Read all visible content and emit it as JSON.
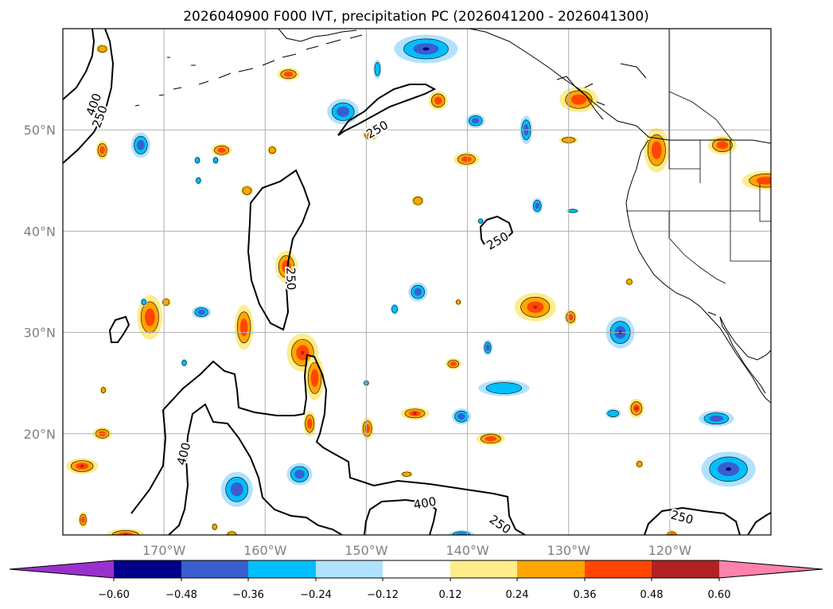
{
  "chart_data": {
    "type": "map",
    "title": "2026040900 F000 IVT, precipitation PC (2026041200 - 2026041300)",
    "lon_range": [
      -180,
      -110
    ],
    "lat_range": [
      10,
      60
    ],
    "x_ticks": [
      {
        "lon": -170,
        "label": "170°W"
      },
      {
        "lon": -160,
        "label": "160°W"
      },
      {
        "lon": -150,
        "label": "150°W"
      },
      {
        "lon": -140,
        "label": "140°W"
      },
      {
        "lon": -130,
        "label": "130°W"
      },
      {
        "lon": -120,
        "label": "120°W"
      }
    ],
    "y_ticks": [
      {
        "lat": 20,
        "label": "20°N"
      },
      {
        "lat": 30,
        "label": "30°N"
      },
      {
        "lat": 40,
        "label": "40°N"
      },
      {
        "lat": 50,
        "label": "50°N"
      }
    ],
    "colorbar": {
      "levels": [
        "−0.60",
        "−0.48",
        "−0.36",
        "−0.24",
        "−0.12",
        "0.12",
        "0.24",
        "0.36",
        "0.48",
        "0.60"
      ],
      "colors": [
        "#9932cc",
        "#00008b",
        "#3a5fcd",
        "#00bfff",
        "#b0e2ff",
        "#ffffff",
        "#ffec8b",
        "#ffa500",
        "#ff4500",
        "#b22222",
        "#ff82ab"
      ]
    },
    "ivt_contour_labels": [
      {
        "text": "400",
        "lon": -176.9,
        "lat": 52.5,
        "rot": -70
      },
      {
        "text": "250",
        "lon": -176.3,
        "lat": 51.3,
        "rot": -70
      },
      {
        "text": "250",
        "lon": -148.9,
        "lat": 50.0,
        "rot": -30
      },
      {
        "text": "250",
        "lon": -137.0,
        "lat": 39.0,
        "rot": -30
      },
      {
        "text": "250",
        "lon": -157.5,
        "lat": 35.3,
        "rot": 88
      },
      {
        "text": "400",
        "lon": -168.0,
        "lat": 18.0,
        "rot": -75
      },
      {
        "text": "400",
        "lon": -144.2,
        "lat": 13.1,
        "rot": -10
      },
      {
        "text": "250",
        "lon": -136.8,
        "lat": 11.0,
        "rot": 35
      },
      {
        "text": "250",
        "lon": -118.8,
        "lat": 11.7,
        "rot": 15
      }
    ],
    "precip_features": [
      {
        "lon": -144.1,
        "lat": 58.0,
        "sign": "neg",
        "level": 3,
        "rx": 40,
        "ry": 18
      },
      {
        "lon": -152.3,
        "lat": 51.8,
        "sign": "neg",
        "level": 2,
        "rx": 20,
        "ry": 16
      },
      {
        "lon": -157.7,
        "lat": 55.5,
        "sign": "pos",
        "level": 2,
        "rx": 14,
        "ry": 8
      },
      {
        "lon": -148.9,
        "lat": 56.0,
        "sign": "neg",
        "level": 1,
        "rx": 5,
        "ry": 12
      },
      {
        "lon": -142.9,
        "lat": 52.9,
        "sign": "pos",
        "level": 2,
        "rx": 12,
        "ry": 12
      },
      {
        "lon": -139.2,
        "lat": 50.9,
        "sign": "neg",
        "level": 2,
        "rx": 12,
        "ry": 9
      },
      {
        "lon": -134.2,
        "lat": 50.0,
        "sign": "neg",
        "level": 2,
        "rx": 8,
        "ry": 18
      },
      {
        "lon": -149.6,
        "lat": 49.5,
        "sign": "pos",
        "level": 2,
        "rx": 10,
        "ry": 7
      },
      {
        "lon": -176.1,
        "lat": 58.0,
        "sign": "pos",
        "level": 1,
        "rx": 8,
        "ry": 6
      },
      {
        "lon": -172.3,
        "lat": 48.5,
        "sign": "neg",
        "level": 2,
        "rx": 12,
        "ry": 16
      },
      {
        "lon": -176.1,
        "lat": 48.0,
        "sign": "pos",
        "level": 2,
        "rx": 8,
        "ry": 12
      },
      {
        "lon": -164.3,
        "lat": 48.0,
        "sign": "pos",
        "level": 2,
        "rx": 13,
        "ry": 8
      },
      {
        "lon": -159.3,
        "lat": 48.0,
        "sign": "pos",
        "level": 1,
        "rx": 6,
        "ry": 6
      },
      {
        "lon": -140.1,
        "lat": 47.1,
        "sign": "pos",
        "level": 2,
        "rx": 16,
        "ry": 9
      },
      {
        "lon": -130.0,
        "lat": 49.0,
        "sign": "pos",
        "level": 1,
        "rx": 12,
        "ry": 5
      },
      {
        "lon": -129.0,
        "lat": 53.0,
        "sign": "pos",
        "level": 2,
        "rx": 24,
        "ry": 16
      },
      {
        "lon": -121.3,
        "lat": 48.0,
        "sign": "pos",
        "level": 2,
        "rx": 16,
        "ry": 28
      },
      {
        "lon": -114.8,
        "lat": 48.5,
        "sign": "pos",
        "level": 2,
        "rx": 18,
        "ry": 12
      },
      {
        "lon": -110.5,
        "lat": 45.0,
        "sign": "pos",
        "level": 2,
        "rx": 30,
        "ry": 12
      },
      {
        "lon": -161.8,
        "lat": 44.0,
        "sign": "pos",
        "level": 1,
        "rx": 8,
        "ry": 7
      },
      {
        "lon": -144.9,
        "lat": 43.0,
        "sign": "pos",
        "level": 1,
        "rx": 8,
        "ry": 7
      },
      {
        "lon": -133.1,
        "lat": 42.5,
        "sign": "neg",
        "level": 2,
        "rx": 7,
        "ry": 10
      },
      {
        "lon": -157.9,
        "lat": 36.5,
        "sign": "pos",
        "level": 2,
        "rx": 14,
        "ry": 20
      },
      {
        "lon": -171.4,
        "lat": 31.5,
        "sign": "pos",
        "level": 2,
        "rx": 16,
        "ry": 28
      },
      {
        "lon": -166.3,
        "lat": 32.0,
        "sign": "neg",
        "level": 2,
        "rx": 12,
        "ry": 8
      },
      {
        "lon": -162.1,
        "lat": 30.5,
        "sign": "pos",
        "level": 2,
        "rx": 12,
        "ry": 28
      },
      {
        "lon": -144.9,
        "lat": 34.0,
        "sign": "neg",
        "level": 2,
        "rx": 12,
        "ry": 12
      },
      {
        "lon": -133.3,
        "lat": 32.5,
        "sign": "pos",
        "level": 3,
        "rx": 26,
        "ry": 18
      },
      {
        "lon": -129.8,
        "lat": 31.5,
        "sign": "pos",
        "level": 2,
        "rx": 8,
        "ry": 10
      },
      {
        "lon": -124.9,
        "lat": 30.0,
        "sign": "neg",
        "level": 3,
        "rx": 18,
        "ry": 20
      },
      {
        "lon": -156.3,
        "lat": 28.0,
        "sign": "pos",
        "level": 3,
        "rx": 20,
        "ry": 24
      },
      {
        "lon": -155.1,
        "lat": 25.5,
        "sign": "pos",
        "level": 2,
        "rx": 12,
        "ry": 28
      },
      {
        "lon": -141.4,
        "lat": 26.9,
        "sign": "pos",
        "level": 2,
        "rx": 10,
        "ry": 7
      },
      {
        "lon": -138.0,
        "lat": 28.5,
        "sign": "neg",
        "level": 2,
        "rx": 6,
        "ry": 10
      },
      {
        "lon": -136.4,
        "lat": 24.5,
        "sign": "neg",
        "level": 1,
        "rx": 32,
        "ry": 10
      },
      {
        "lon": -145.2,
        "lat": 22.0,
        "sign": "pos",
        "level": 3,
        "rx": 18,
        "ry": 8
      },
      {
        "lon": -140.6,
        "lat": 21.7,
        "sign": "neg",
        "level": 2,
        "rx": 12,
        "ry": 10
      },
      {
        "lon": -137.7,
        "lat": 19.5,
        "sign": "pos",
        "level": 2,
        "rx": 18,
        "ry": 8
      },
      {
        "lon": -149.9,
        "lat": 20.5,
        "sign": "pos",
        "level": 2,
        "rx": 8,
        "ry": 14
      },
      {
        "lon": -155.6,
        "lat": 21.0,
        "sign": "pos",
        "level": 2,
        "rx": 8,
        "ry": 16
      },
      {
        "lon": -123.3,
        "lat": 22.5,
        "sign": "pos",
        "level": 3,
        "rx": 10,
        "ry": 12
      },
      {
        "lon": -125.6,
        "lat": 22.0,
        "sign": "neg",
        "level": 1,
        "rx": 10,
        "ry": 6
      },
      {
        "lon": -115.4,
        "lat": 21.5,
        "sign": "neg",
        "level": 2,
        "rx": 22,
        "ry": 10
      },
      {
        "lon": -114.2,
        "lat": 16.5,
        "sign": "neg",
        "level": 3,
        "rx": 34,
        "ry": 22
      },
      {
        "lon": -176.1,
        "lat": 20.0,
        "sign": "pos",
        "level": 2,
        "rx": 12,
        "ry": 8
      },
      {
        "lon": -178.1,
        "lat": 16.8,
        "sign": "pos",
        "level": 3,
        "rx": 20,
        "ry": 10
      },
      {
        "lon": -162.8,
        "lat": 14.5,
        "sign": "neg",
        "level": 2,
        "rx": 20,
        "ry": 22
      },
      {
        "lon": -156.6,
        "lat": 16.0,
        "sign": "neg",
        "level": 2,
        "rx": 16,
        "ry": 14
      },
      {
        "lon": -178.0,
        "lat": 11.5,
        "sign": "pos",
        "level": 2,
        "rx": 6,
        "ry": 10
      },
      {
        "lon": -173.8,
        "lat": 10.0,
        "sign": "pos",
        "level": 3,
        "rx": 24,
        "ry": 8
      },
      {
        "lon": -163.3,
        "lat": 10.0,
        "sign": "pos",
        "level": 1,
        "rx": 8,
        "ry": 6
      },
      {
        "lon": -140.6,
        "lat": 10.0,
        "sign": "neg",
        "level": 2,
        "rx": 16,
        "ry": 6
      },
      {
        "lon": -119.8,
        "lat": 10.0,
        "sign": "pos",
        "level": 2,
        "rx": 8,
        "ry": 6
      },
      {
        "lon": -147.2,
        "lat": 32.3,
        "sign": "neg",
        "level": 1,
        "rx": 5,
        "ry": 7
      },
      {
        "lon": -150.0,
        "lat": 25.0,
        "sign": "neg",
        "level": 1,
        "rx": 4,
        "ry": 4
      },
      {
        "lon": -146.0,
        "lat": 16.0,
        "sign": "pos",
        "level": 1,
        "rx": 8,
        "ry": 4
      },
      {
        "lon": -172.0,
        "lat": 33.0,
        "sign": "neg",
        "level": 1,
        "rx": 4,
        "ry": 5
      },
      {
        "lon": -168.0,
        "lat": 27.0,
        "sign": "neg",
        "level": 1,
        "rx": 4,
        "ry": 5
      },
      {
        "lon": -176.0,
        "lat": 24.3,
        "sign": "pos",
        "level": 1,
        "rx": 4,
        "ry": 5
      },
      {
        "lon": -169.8,
        "lat": 33.0,
        "sign": "pos",
        "level": 1,
        "rx": 6,
        "ry": 6
      },
      {
        "lon": -164.9,
        "lat": 47.0,
        "sign": "neg",
        "level": 1,
        "rx": 4,
        "ry": 5
      },
      {
        "lon": -166.7,
        "lat": 47.0,
        "sign": "neg",
        "level": 1,
        "rx": 4,
        "ry": 5
      },
      {
        "lon": -166.6,
        "lat": 45.0,
        "sign": "neg",
        "level": 1,
        "rx": 4,
        "ry": 5
      },
      {
        "lon": -138.7,
        "lat": 41.0,
        "sign": "neg",
        "level": 1,
        "rx": 4,
        "ry": 4
      },
      {
        "lon": -140.9,
        "lat": 33.0,
        "sign": "pos",
        "level": 1,
        "rx": 4,
        "ry": 4
      },
      {
        "lon": -123.0,
        "lat": 17.0,
        "sign": "pos",
        "level": 1,
        "rx": 5,
        "ry": 5
      },
      {
        "lon": -129.6,
        "lat": 42.0,
        "sign": "neg",
        "level": 1,
        "rx": 8,
        "ry": 3
      },
      {
        "lon": -124.0,
        "lat": 35.0,
        "sign": "pos",
        "level": 1,
        "rx": 5,
        "ry": 5
      },
      {
        "lon": -165.0,
        "lat": 10.8,
        "sign": "pos",
        "level": 1,
        "rx": 4,
        "ry": 5
      }
    ]
  }
}
